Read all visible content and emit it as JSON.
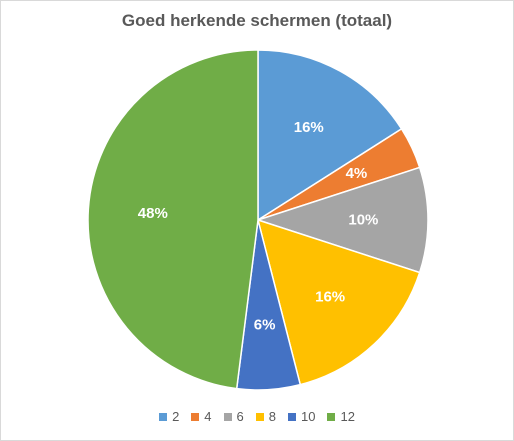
{
  "chart_data": {
    "type": "pie",
    "title": "Goed herkende schermen (totaal)",
    "categories": [
      "2",
      "4",
      "6",
      "8",
      "10",
      "12"
    ],
    "values": [
      16,
      4,
      10,
      16,
      6,
      48
    ],
    "labels": [
      "16%",
      "4%",
      "10%",
      "16%",
      "6%",
      "48%"
    ],
    "colors": [
      "#5b9bd5",
      "#ed7d31",
      "#a5a5a5",
      "#ffc000",
      "#4472c4",
      "#70ad47"
    ],
    "legend_position": "bottom"
  }
}
